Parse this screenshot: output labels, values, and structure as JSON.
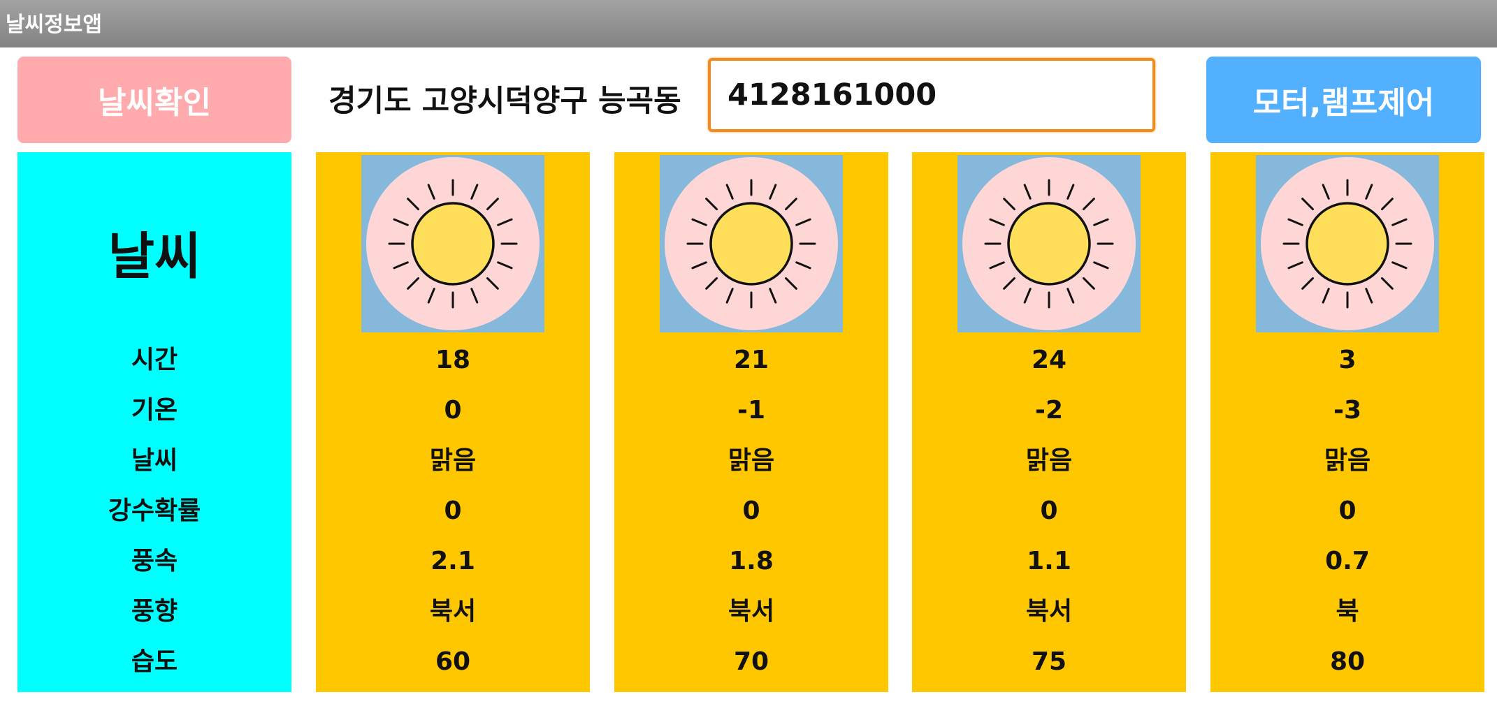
{
  "window": {
    "title": "날씨정보앱"
  },
  "toolbar": {
    "check_label": "날씨확인",
    "location": "경기도 고양시덕양구 능곡동",
    "area_code": "4128161000",
    "control_label": "모터,램프제어"
  },
  "labels": {
    "header": "날씨",
    "time": "시간",
    "temp": "기온",
    "weather": "날씨",
    "rain": "강수확률",
    "wind_speed": "풍속",
    "wind_dir": "풍향",
    "humidity": "습도"
  },
  "forecasts": [
    {
      "icon": "sun-icon",
      "time": "18",
      "temp": "0",
      "weather": "맑음",
      "rain": "0",
      "wind_speed": "2.1",
      "wind_dir": "북서",
      "humidity": "60"
    },
    {
      "icon": "sun-icon",
      "time": "21",
      "temp": "-1",
      "weather": "맑음",
      "rain": "0",
      "wind_speed": "1.8",
      "wind_dir": "북서",
      "humidity": "70"
    },
    {
      "icon": "sun-icon",
      "time": "24",
      "temp": "-2",
      "weather": "맑음",
      "rain": "0",
      "wind_speed": "1.1",
      "wind_dir": "북서",
      "humidity": "75"
    },
    {
      "icon": "sun-icon",
      "time": "3",
      "temp": "-3",
      "weather": "맑음",
      "rain": "0",
      "wind_speed": "0.7",
      "wind_dir": "북",
      "humidity": "80"
    }
  ],
  "colors": {
    "check_button": "#ffabad",
    "control_button": "#52b0ff",
    "label_column": "#00ffff",
    "forecast_card": "#ffc700",
    "input_border": "#f38a19"
  }
}
